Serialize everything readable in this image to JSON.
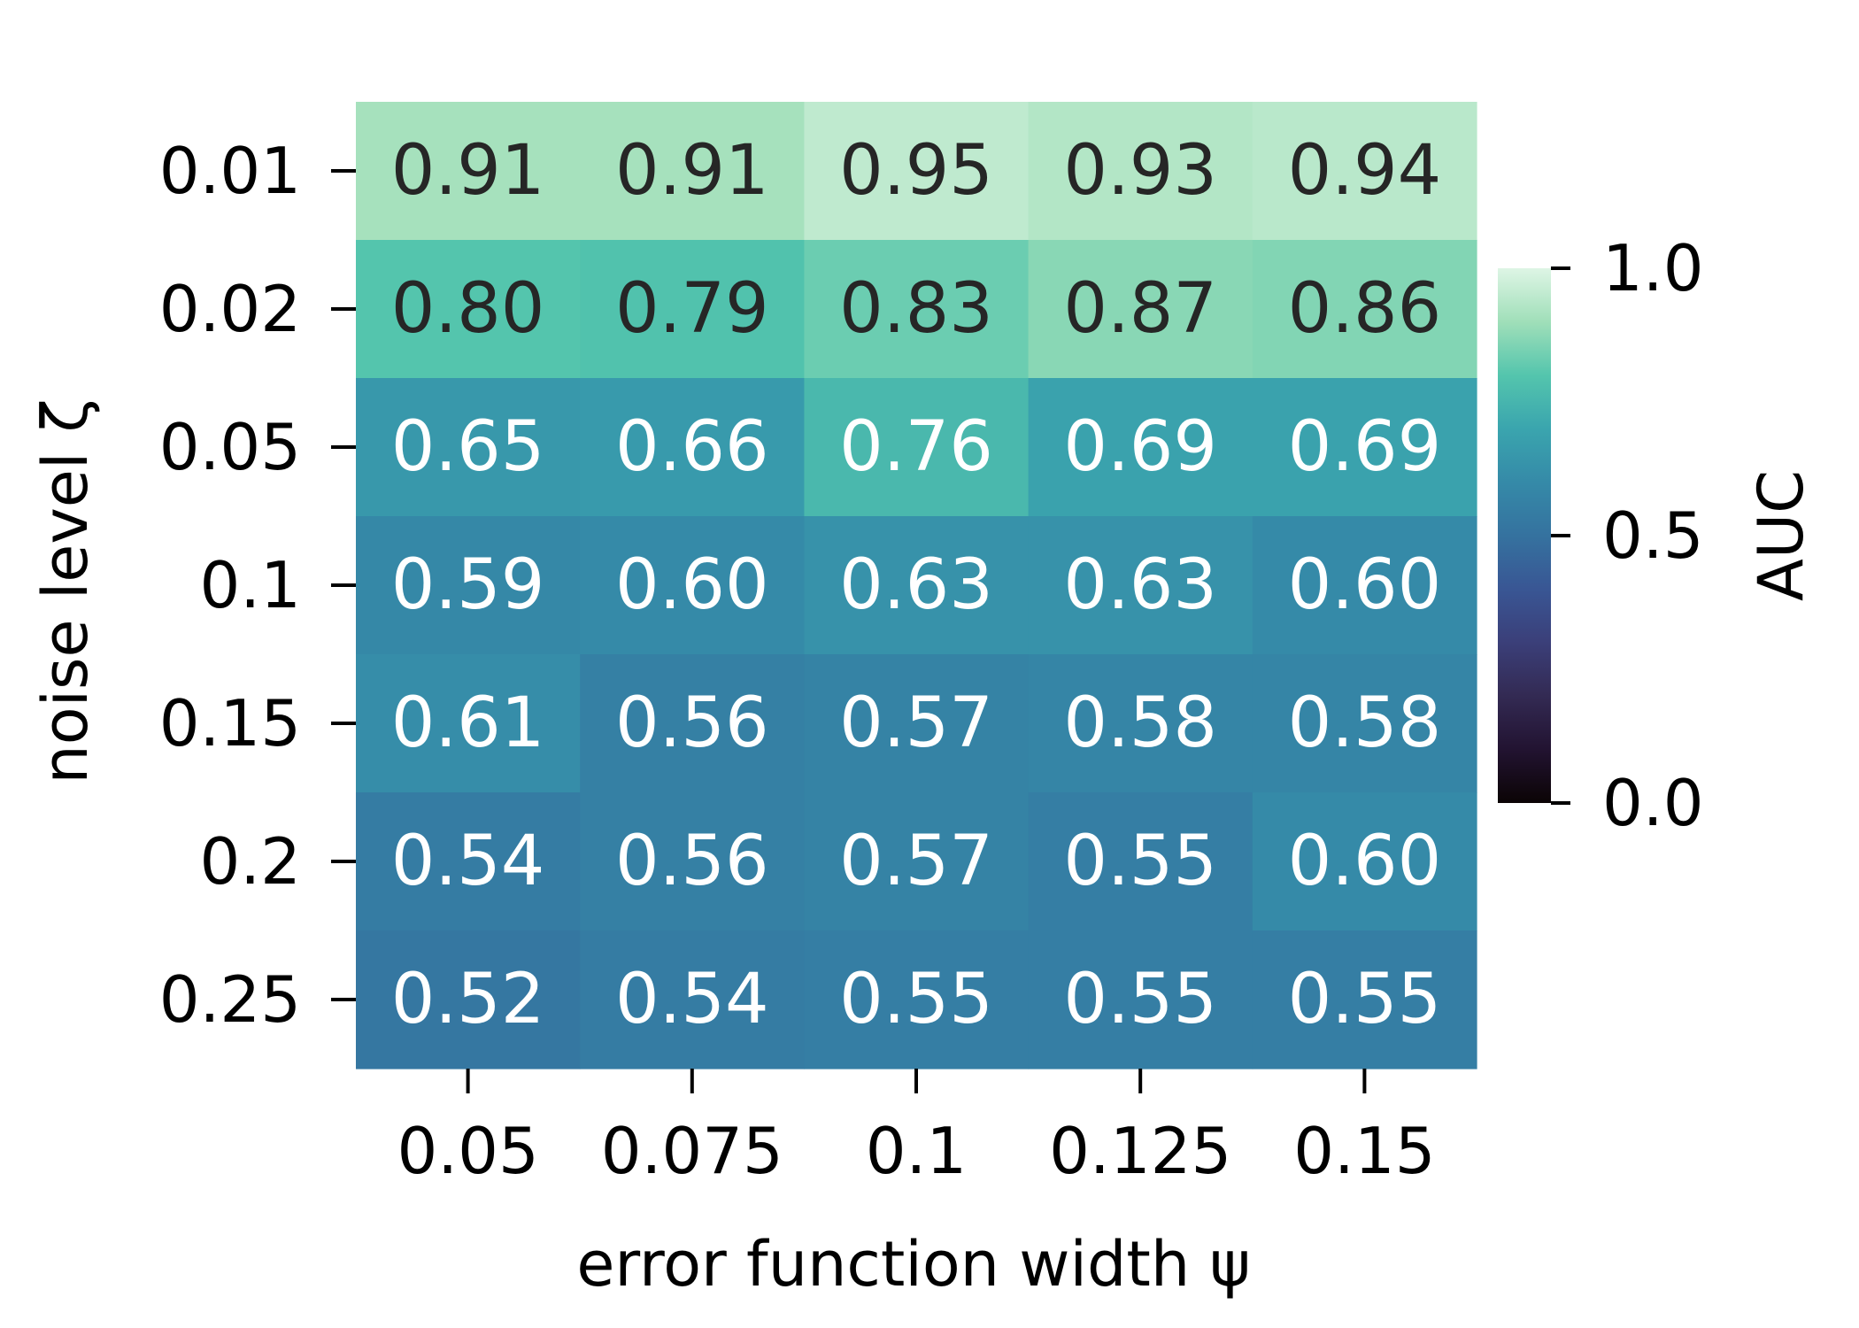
{
  "chart_data": {
    "type": "heatmap",
    "xlabel": "error function width ψ",
    "ylabel": "noise level ζ",
    "x_categories": [
      "0.05",
      "0.075",
      "0.1",
      "0.125",
      "0.15"
    ],
    "y_categories": [
      "0.01",
      "0.02",
      "0.05",
      "0.1",
      "0.15",
      "0.2",
      "0.25"
    ],
    "values": [
      [
        0.91,
        0.91,
        0.95,
        0.93,
        0.94
      ],
      [
        0.8,
        0.79,
        0.83,
        0.87,
        0.86
      ],
      [
        0.65,
        0.66,
        0.76,
        0.69,
        0.69
      ],
      [
        0.59,
        0.6,
        0.63,
        0.63,
        0.6
      ],
      [
        0.61,
        0.56,
        0.57,
        0.58,
        0.58
      ],
      [
        0.54,
        0.56,
        0.57,
        0.55,
        0.6
      ],
      [
        0.52,
        0.54,
        0.55,
        0.55,
        0.55
      ]
    ],
    "value_format": "2 decimals",
    "colormap": "mako",
    "colorbar": {
      "label": "AUC",
      "range": [
        0.0,
        1.0
      ],
      "ticks": [
        "0.0",
        "0.5",
        "1.0"
      ]
    },
    "annotation_colors": {
      "dark": "#262626",
      "light": "#ffffff"
    },
    "grid": false,
    "legend": "colorbar right"
  }
}
